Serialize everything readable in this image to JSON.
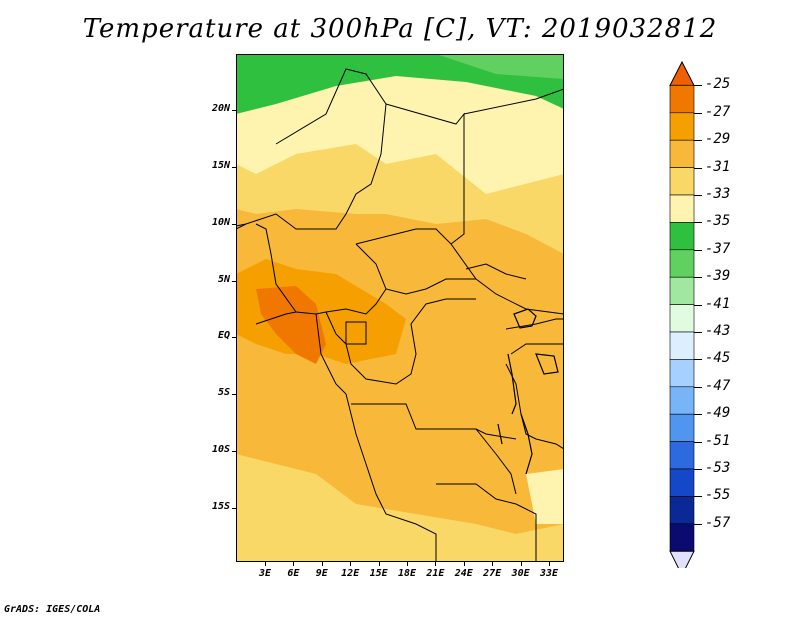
{
  "title": "Temperature at 300hPa [C], VT: 2019032812",
  "credit": "GrADS: IGES/COLA",
  "map": {
    "lat_labels": [
      "20N",
      "15N",
      "10N",
      "5N",
      "EQ",
      "5S",
      "10S",
      "15S"
    ],
    "lon_labels": [
      "3E",
      "6E",
      "9E",
      "12E",
      "15E",
      "18E",
      "21E",
      "24E",
      "27E",
      "30E",
      "33E"
    ]
  },
  "colorbar": {
    "labels": [
      "-25",
      "-27",
      "-29",
      "-31",
      "-33",
      "-35",
      "-37",
      "-39",
      "-41",
      "-43",
      "-45",
      "-47",
      "-49",
      "-51",
      "-53",
      "-55",
      "-57"
    ],
    "colors": [
      "#f06000",
      "#f07800",
      "#f5a000",
      "#f8b83a",
      "#fad868",
      "#fff3b0",
      "#30c040",
      "#60d060",
      "#a0e8a0",
      "#e0fbe0",
      "#ddeeff",
      "#a6d0ff",
      "#78b4f8",
      "#5096f0",
      "#2d6ae0",
      "#1448c8",
      "#0a2896",
      "#0a0a70",
      "#e0e0ff"
    ]
  }
}
